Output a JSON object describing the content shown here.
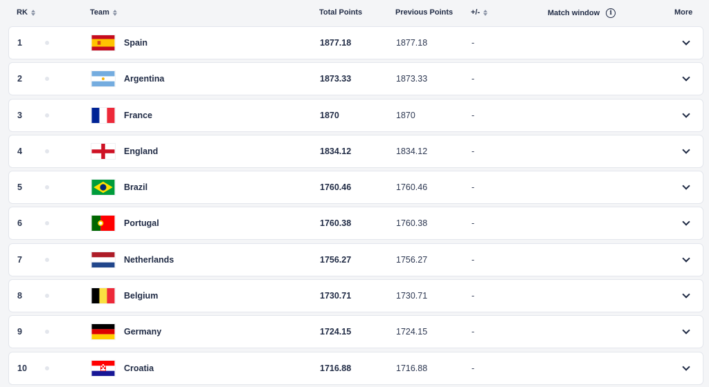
{
  "header": {
    "rank": "RK",
    "team": "Team",
    "total_points": "Total Points",
    "previous_points": "Previous Points",
    "change": "+/-",
    "match_window": "Match window",
    "info_icon": "i",
    "more": "More"
  },
  "rows": [
    {
      "rank": "1",
      "team": "Spain",
      "flag": "spain-flag",
      "total": "1877.18",
      "previous": "1877.18",
      "change": "-"
    },
    {
      "rank": "2",
      "team": "Argentina",
      "flag": "argentina-flag",
      "total": "1873.33",
      "previous": "1873.33",
      "change": "-"
    },
    {
      "rank": "3",
      "team": "France",
      "flag": "france-flag",
      "total": "1870",
      "previous": "1870",
      "change": "-"
    },
    {
      "rank": "4",
      "team": "England",
      "flag": "england-flag",
      "total": "1834.12",
      "previous": "1834.12",
      "change": "-"
    },
    {
      "rank": "5",
      "team": "Brazil",
      "flag": "brazil-flag",
      "total": "1760.46",
      "previous": "1760.46",
      "change": "-"
    },
    {
      "rank": "6",
      "team": "Portugal",
      "flag": "portugal-flag",
      "total": "1760.38",
      "previous": "1760.38",
      "change": "-"
    },
    {
      "rank": "7",
      "team": "Netherlands",
      "flag": "netherlands-flag",
      "total": "1756.27",
      "previous": "1756.27",
      "change": "-"
    },
    {
      "rank": "8",
      "team": "Belgium",
      "flag": "belgium-flag",
      "total": "1730.71",
      "previous": "1730.71",
      "change": "-"
    },
    {
      "rank": "9",
      "team": "Germany",
      "flag": "germany-flag",
      "total": "1724.15",
      "previous": "1724.15",
      "change": "-"
    },
    {
      "rank": "10",
      "team": "Croatia",
      "flag": "croatia-flag",
      "total": "1716.88",
      "previous": "1716.88",
      "change": "-"
    }
  ],
  "colors": {
    "text": "#1f2a44",
    "row_bg": "#ffffff",
    "page_bg": "#f4f5f7",
    "row_border": "#e3e6ec"
  }
}
